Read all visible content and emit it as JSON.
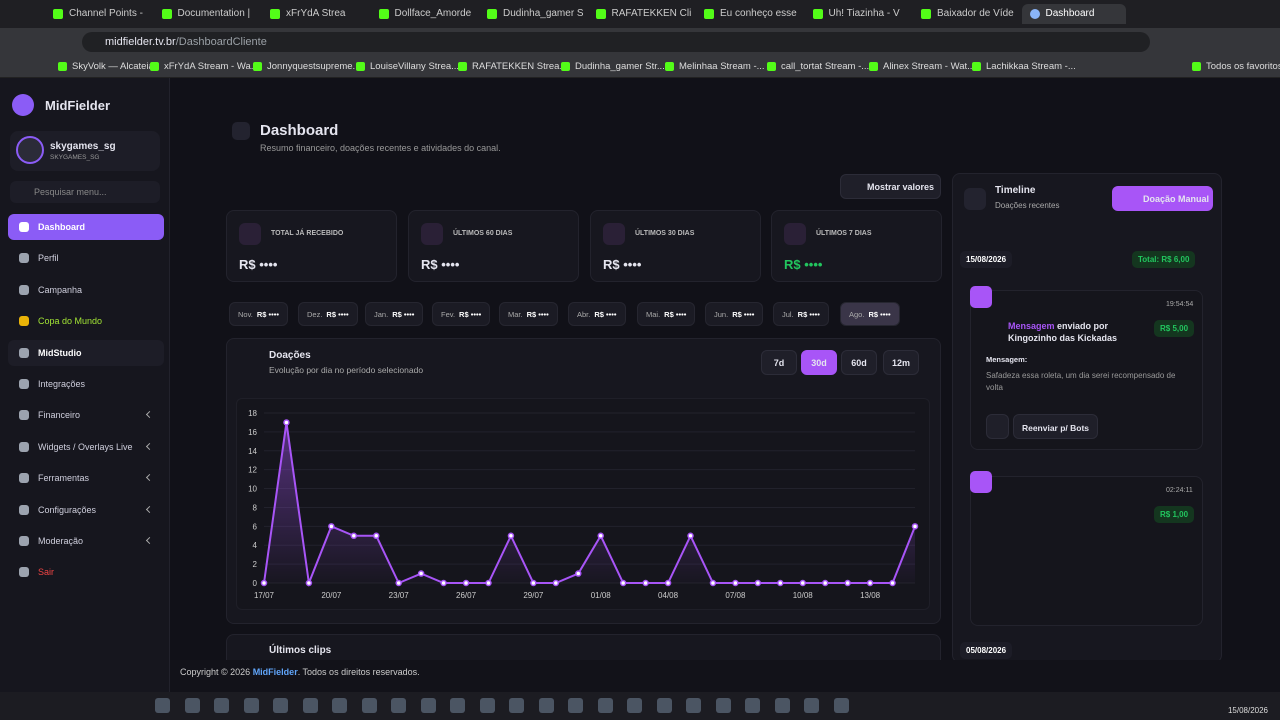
{
  "browser": {
    "tabs": [
      "Channel Points -",
      "Documentation |",
      "xFrYdA Strea",
      "Dollface_Amorde",
      "Dudinha_gamer S",
      "RAFATEKKEN Clip",
      "Eu conheço esse",
      "Uh! Tiazinha - V",
      "Baixador de Víde",
      "Dashboard"
    ],
    "address": {
      "host": "midfielder.tv.br",
      "path": "/DashboardCliente"
    },
    "bookmarks": [
      "SkyVolk — Alcateia",
      "xFrYdA Stream - Wa...",
      "Jonnyquestsupreme...",
      "LouiseVillany Strea...",
      "RAFATEKKEN Strea...",
      "Dudinha_gamer Str...",
      "Melinhaa Stream -...",
      "call_tortat Stream -...",
      "Alinex Stream - Wat...",
      "Lachikkaa Stream -..."
    ],
    "all_bookmarks": "Todos os favoritos"
  },
  "sidebar": {
    "brand": "MidFielder",
    "user": {
      "name": "skygames_sg",
      "handle": "SKYGAMES_SG"
    },
    "search_placeholder": "Pesquisar menu...",
    "menu": [
      "Dashboard",
      "Perfil",
      "Campanha",
      "Copa do Mundo",
      "MidStudio",
      "Integrações",
      "Financeiro",
      "Widgets / Overlays Live",
      "Ferramentas",
      "Configurações",
      "Moderação",
      "Sair"
    ]
  },
  "header": {
    "title": "Dashboard",
    "subtitle": "Resumo financeiro, doações recentes e atividades do canal."
  },
  "show_values": "Mostrar valores",
  "cards": [
    {
      "label": "TOTAL JÁ RECEBIDO",
      "value": "R$ ••••"
    },
    {
      "label": "ÚLTIMOS 60 DIAS",
      "value": "R$ ••••"
    },
    {
      "label": "ÚLTIMOS 30 DIAS",
      "value": "R$ ••••"
    },
    {
      "label": "ÚLTIMOS 7 DIAS",
      "value": "R$ ••••"
    }
  ],
  "months": [
    {
      "label": "Nov.",
      "value": "R$ ••••"
    },
    {
      "label": "Dez.",
      "value": "R$ ••••"
    },
    {
      "label": "Jan.",
      "value": "R$ ••••"
    },
    {
      "label": "Fev.",
      "value": "R$ ••••"
    },
    {
      "label": "Mar.",
      "value": "R$ ••••"
    },
    {
      "label": "Abr.",
      "value": "R$ ••••"
    },
    {
      "label": "Mai.",
      "value": "R$ ••••"
    },
    {
      "label": "Jun.",
      "value": "R$ ••••"
    },
    {
      "label": "Jul.",
      "value": "R$ ••••"
    },
    {
      "label": "Ago.",
      "value": "R$ ••••"
    }
  ],
  "chart": {
    "type": "line",
    "title": "Doações",
    "subtitle": "Evolução por dia no período selecionado",
    "ranges": [
      "7d",
      "30d",
      "60d",
      "12m"
    ],
    "categories": [
      "17/07",
      null,
      null,
      "20/07",
      null,
      null,
      "23/07",
      null,
      null,
      "26/07",
      null,
      null,
      "29/07",
      null,
      null,
      "01/08",
      null,
      null,
      "04/08",
      null,
      null,
      "07/08",
      null,
      null,
      "10/08",
      null,
      null,
      "13/08",
      null,
      null
    ],
    "values": [
      0,
      17,
      0,
      6,
      5,
      5,
      0,
      1,
      0,
      0,
      0,
      5,
      0,
      0,
      1,
      5,
      0,
      0,
      0,
      5,
      0,
      0,
      0,
      0,
      0,
      0,
      0,
      0,
      0,
      6
    ],
    "ylim": [
      0,
      18
    ],
    "yticks": [
      0,
      2,
      4,
      6,
      8,
      10,
      12,
      14,
      16,
      18
    ],
    "color": "#a855f7",
    "grid": true
  },
  "clips_title": "Últimos clips",
  "timeline": {
    "title": "Timeline",
    "subtitle": "Doações recentes",
    "manual_button": "Doação Manual",
    "date": "15/08/2026",
    "total": "Total: R$ 6,00",
    "items": [
      {
        "time": "19:54:54",
        "amount": "R$ 5,00",
        "kind": "Mensagem",
        "text": "enviado por Kingozinho das Kickadas",
        "message_label": "Mensagem:",
        "message": "Safadeza essa roleta, um dia serei recompensado de volta",
        "resend": "Reenviar p/ Bots"
      },
      {
        "time": "02:24:11",
        "amount": "R$ 1,00"
      }
    ],
    "next_date": "05/08/2026"
  },
  "footer": {
    "copyright": "Copyright © 2026",
    "brand": "MidFielder",
    "rest": ". Todos os direitos reservados."
  },
  "taskbar": {
    "date": "15/08/2026"
  }
}
